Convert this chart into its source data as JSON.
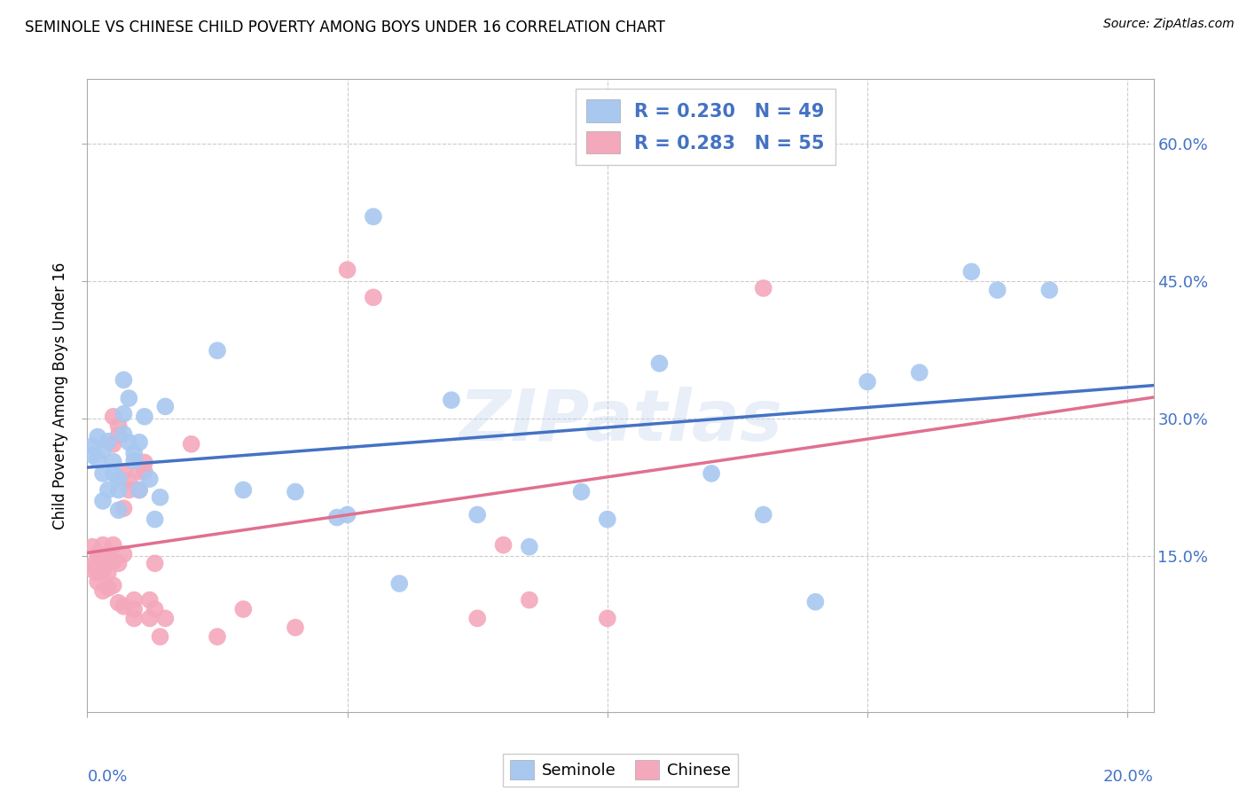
{
  "title": "SEMINOLE VS CHINESE CHILD POVERTY AMONG BOYS UNDER 16 CORRELATION CHART",
  "source": "Source: ZipAtlas.com",
  "ylabel": "Child Poverty Among Boys Under 16",
  "ytick_vals": [
    0.15,
    0.3,
    0.45,
    0.6
  ],
  "ytick_labels": [
    "15.0%",
    "30.0%",
    "45.0%",
    "60.0%"
  ],
  "xtick_vals": [
    0.0,
    0.05,
    0.1,
    0.15,
    0.2
  ],
  "xlim": [
    0.0,
    0.205
  ],
  "ylim": [
    -0.02,
    0.67
  ],
  "legend1_text": "R = 0.230   N = 49",
  "legend2_text": "R = 0.283   N = 55",
  "watermark": "ZIPatlas",
  "seminole_color": "#A8C8F0",
  "chinese_color": "#F4A8BC",
  "trendline_s_color": "#4472C4",
  "trendline_c_color": "#E07090",
  "bg_color": "#FFFFFF",
  "grid_color": "#CCCCCC",
  "seminole_x": [
    0.001,
    0.001,
    0.002,
    0.002,
    0.003,
    0.003,
    0.003,
    0.004,
    0.004,
    0.005,
    0.005,
    0.006,
    0.006,
    0.006,
    0.007,
    0.007,
    0.007,
    0.008,
    0.008,
    0.009,
    0.009,
    0.01,
    0.01,
    0.011,
    0.012,
    0.013,
    0.014,
    0.015,
    0.025,
    0.03,
    0.048,
    0.055,
    0.075,
    0.085,
    0.095,
    0.12,
    0.14,
    0.16,
    0.17,
    0.185,
    0.07,
    0.05,
    0.1,
    0.11,
    0.13,
    0.15,
    0.175,
    0.04,
    0.06
  ],
  "seminole_y": [
    0.26,
    0.27,
    0.255,
    0.28,
    0.24,
    0.265,
    0.21,
    0.222,
    0.275,
    0.24,
    0.253,
    0.234,
    0.222,
    0.2,
    0.305,
    0.342,
    0.283,
    0.322,
    0.274,
    0.254,
    0.262,
    0.274,
    0.222,
    0.302,
    0.234,
    0.19,
    0.214,
    0.313,
    0.374,
    0.222,
    0.192,
    0.52,
    0.195,
    0.16,
    0.22,
    0.24,
    0.1,
    0.35,
    0.46,
    0.44,
    0.32,
    0.195,
    0.19,
    0.36,
    0.195,
    0.34,
    0.44,
    0.22,
    0.12
  ],
  "chinese_x": [
    0.001,
    0.001,
    0.001,
    0.002,
    0.002,
    0.002,
    0.002,
    0.003,
    0.003,
    0.003,
    0.003,
    0.004,
    0.004,
    0.004,
    0.005,
    0.005,
    0.005,
    0.005,
    0.006,
    0.006,
    0.006,
    0.007,
    0.007,
    0.007,
    0.008,
    0.008,
    0.009,
    0.009,
    0.009,
    0.01,
    0.01,
    0.011,
    0.011,
    0.012,
    0.012,
    0.013,
    0.013,
    0.014,
    0.015,
    0.02,
    0.025,
    0.03,
    0.04,
    0.05,
    0.055,
    0.075,
    0.08,
    0.085,
    0.1,
    0.13,
    0.003,
    0.004,
    0.005,
    0.006,
    0.007
  ],
  "chinese_y": [
    0.14,
    0.135,
    0.16,
    0.145,
    0.152,
    0.132,
    0.122,
    0.15,
    0.162,
    0.134,
    0.142,
    0.143,
    0.132,
    0.152,
    0.272,
    0.302,
    0.144,
    0.162,
    0.282,
    0.292,
    0.142,
    0.242,
    0.202,
    0.152,
    0.222,
    0.232,
    0.082,
    0.092,
    0.102,
    0.242,
    0.222,
    0.242,
    0.252,
    0.082,
    0.102,
    0.142,
    0.092,
    0.062,
    0.082,
    0.272,
    0.062,
    0.092,
    0.072,
    0.462,
    0.432,
    0.082,
    0.162,
    0.102,
    0.082,
    0.442,
    0.112,
    0.115,
    0.118,
    0.099,
    0.095
  ]
}
